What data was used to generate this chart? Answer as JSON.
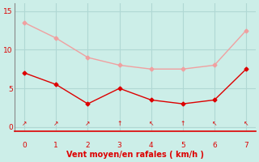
{
  "x": [
    0,
    1,
    2,
    3,
    4,
    5,
    6,
    7
  ],
  "upper_line": [
    13.5,
    11.5,
    9.0,
    8.0,
    7.5,
    7.5,
    8.0,
    12.5
  ],
  "lower_line": [
    7.0,
    5.5,
    3.0,
    5.0,
    3.5,
    3.0,
    3.5,
    7.5
  ],
  "upper_color": "#f0a0a0",
  "lower_color": "#dd0000",
  "bg_color": "#cceee8",
  "xlabel": "Vent moyen/en rafales ( km/h )",
  "xlabel_color": "#dd0000",
  "tick_color": "#dd0000",
  "grid_color": "#b0d8d4",
  "spine_color": "#888888",
  "xlim": [
    -0.3,
    7.3
  ],
  "ylim": [
    -0.5,
    16
  ],
  "yticks": [
    0,
    5,
    10,
    15
  ],
  "xticks": [
    0,
    1,
    2,
    3,
    4,
    5,
    6,
    7
  ],
  "arrow_symbols": [
    "↗",
    "↗",
    "↗",
    "↑",
    "↖",
    "↑",
    "↖",
    "↖"
  ]
}
